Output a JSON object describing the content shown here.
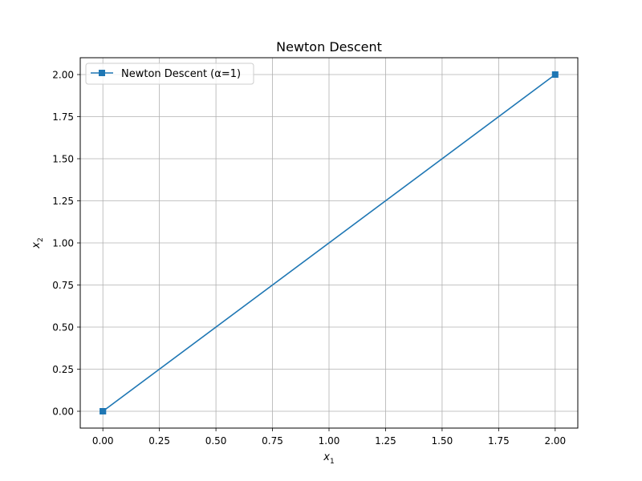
{
  "chart_data": {
    "type": "line",
    "title": "Newton Descent",
    "xlabel": {
      "base": "x",
      "sub": "1"
    },
    "ylabel": {
      "base": "x",
      "sub": "2"
    },
    "xlim": [
      -0.1,
      2.1
    ],
    "ylim": [
      -0.1,
      2.1
    ],
    "x_ticks": [
      0.0,
      0.25,
      0.5,
      0.75,
      1.0,
      1.25,
      1.5,
      1.75,
      2.0
    ],
    "y_ticks": [
      0.0,
      0.25,
      0.5,
      0.75,
      1.0,
      1.25,
      1.5,
      1.75,
      2.0
    ],
    "x_tick_labels": [
      "0.00",
      "0.25",
      "0.50",
      "0.75",
      "1.00",
      "1.25",
      "1.50",
      "1.75",
      "2.00"
    ],
    "y_tick_labels": [
      "0.00",
      "0.25",
      "0.50",
      "0.75",
      "1.00",
      "1.25",
      "1.50",
      "1.75",
      "2.00"
    ],
    "grid": true,
    "legend_position": "top-left",
    "series": [
      {
        "name": "Newton Descent (α=1)",
        "color": "#1f77b4",
        "marker": "square",
        "x": [
          2.0,
          0.0,
          0.0
        ],
        "y": [
          2.0,
          0.0,
          0.0
        ]
      }
    ]
  }
}
